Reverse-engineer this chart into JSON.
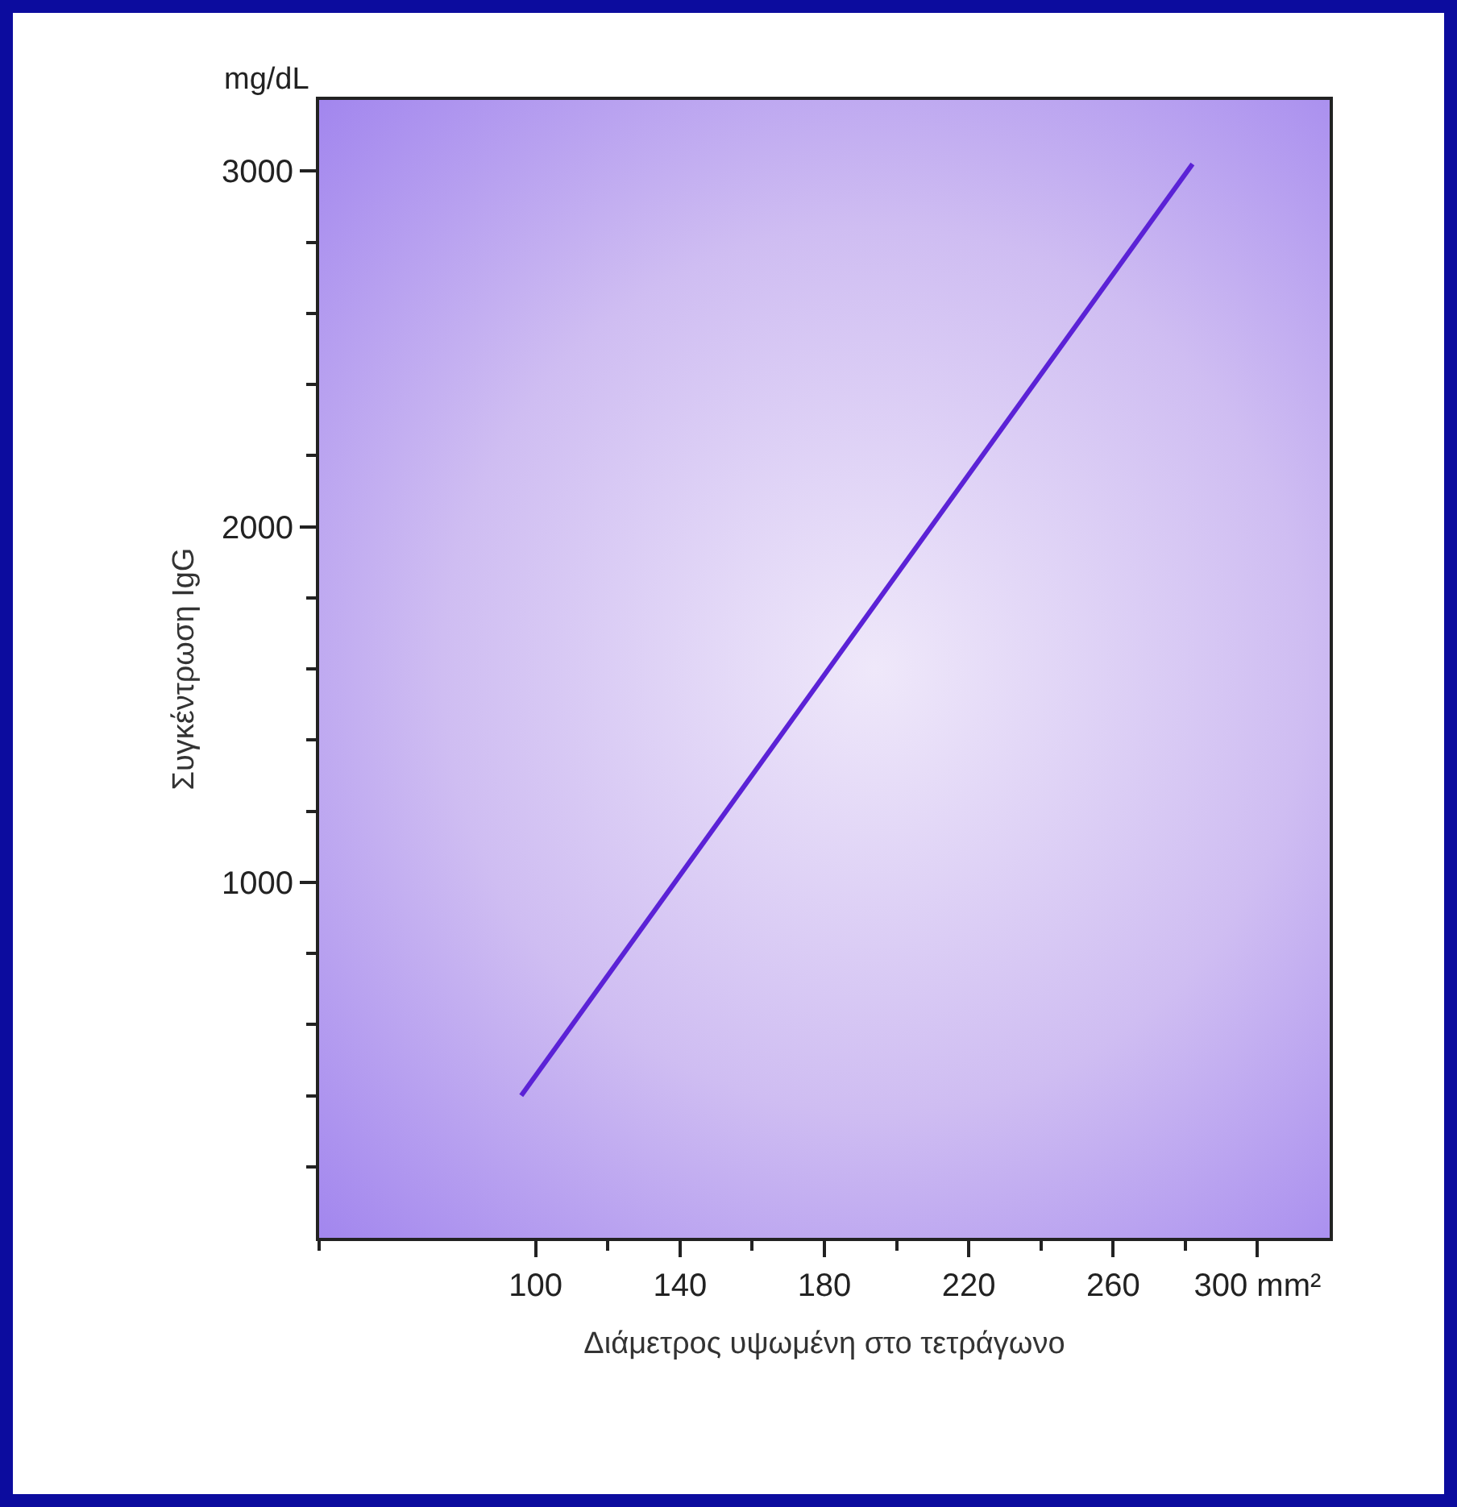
{
  "chart_data": {
    "type": "line",
    "xlabel": "Διάμετρος υψωμένη στο τετράγωνο",
    "ylabel": "Συγκέντρωση IgG",
    "annotations": [
      "mg/dL"
    ],
    "x": [
      96,
      282
    ],
    "series": [
      {
        "color": "#5b22d6",
        "values": [
          400,
          3020
        ]
      }
    ],
    "xlim": [
      40,
      320
    ],
    "xticks": [
      {
        "value": 40,
        "label": null
      },
      100,
      {
        "value": 120,
        "label": null
      },
      140,
      {
        "value": 160,
        "label": null
      },
      180,
      {
        "value": 200,
        "label": null
      },
      220,
      {
        "value": 240,
        "label": null
      },
      260,
      {
        "value": 280,
        "label": null
      },
      {
        "value": 300,
        "label": "300 mm²"
      }
    ],
    "ylim": [
      0,
      3200
    ],
    "yticks": [
      {
        "value": 200,
        "label": null
      },
      {
        "value": 400,
        "label": null
      },
      {
        "value": 600,
        "label": null
      },
      {
        "value": 800,
        "label": null
      },
      1000,
      {
        "value": 1200,
        "label": null
      },
      {
        "value": 1400,
        "label": null
      },
      {
        "value": 1600,
        "label": null
      },
      {
        "value": 1800,
        "label": null
      },
      2000,
      {
        "value": 2200,
        "label": null
      },
      {
        "value": 2400,
        "label": null
      },
      {
        "value": 2600,
        "label": null
      },
      {
        "value": 2800,
        "label": null
      },
      3000
    ],
    "grid": false,
    "marker": "none",
    "line_style": "solid"
  }
}
